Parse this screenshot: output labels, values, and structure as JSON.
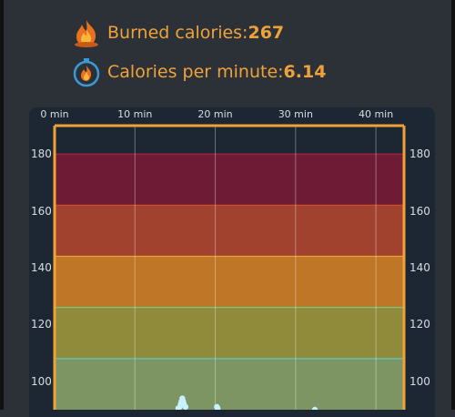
{
  "stats": {
    "burned": {
      "label": "Burned calories: ",
      "value": "267",
      "icon": "fire-icon"
    },
    "per_minute": {
      "label": "Calories per minute: ",
      "value": "6.14",
      "icon": "stopwatch-fire-icon"
    }
  },
  "colors": {
    "accent": "#f0a23a",
    "background": "#2b3137",
    "chart_bg": "#1c2733",
    "zone_max": "#6e1b36",
    "zone_hard": "#a1422f",
    "zone_moderate": "#c07627",
    "zone_light": "#8f8b3a",
    "zone_very_light": "#7c9562",
    "hr_points": "#c8f0ff"
  },
  "chart_data": {
    "type": "scatter",
    "title": "",
    "xlabel": "",
    "ylabel": "",
    "x_ticks": [
      "0 min",
      "10 min",
      "20 min",
      "30 min",
      "40 min"
    ],
    "y_ticks": [
      "180",
      "160",
      "140",
      "120",
      "100"
    ],
    "xlim": [
      0,
      43.5
    ],
    "ylim": [
      90,
      190
    ],
    "zones": [
      {
        "name": "zone-5",
        "from": 162,
        "to": 180,
        "color": "#6e1b36"
      },
      {
        "name": "zone-4",
        "from": 144,
        "to": 162,
        "color": "#a1422f"
      },
      {
        "name": "zone-3",
        "from": 126,
        "to": 144,
        "color": "#c07627"
      },
      {
        "name": "zone-2",
        "from": 108,
        "to": 126,
        "color": "#8f8b3a"
      },
      {
        "name": "zone-1",
        "from": 90,
        "to": 108,
        "color": "#7c9562"
      }
    ],
    "points": [
      {
        "x": 15.6,
        "y": 91
      },
      {
        "x": 15.7,
        "y": 92
      },
      {
        "x": 15.8,
        "y": 93
      },
      {
        "x": 15.9,
        "y": 94
      },
      {
        "x": 16.0,
        "y": 93
      },
      {
        "x": 16.1,
        "y": 92
      },
      {
        "x": 15.4,
        "y": 90.5
      },
      {
        "x": 16.3,
        "y": 91
      },
      {
        "x": 20.2,
        "y": 91
      },
      {
        "x": 20.3,
        "y": 90.5
      },
      {
        "x": 32.4,
        "y": 90
      }
    ]
  }
}
